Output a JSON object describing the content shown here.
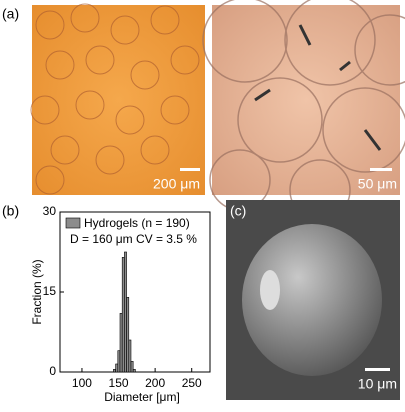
{
  "panels": {
    "a": "(a)",
    "b": "(b)",
    "c": "(c)"
  },
  "scale_bars": [
    "200 μm",
    "50 μm",
    "10 μm"
  ],
  "chart_data": {
    "type": "histogram",
    "annotation": "D = 160 μm CV = 3.5 %",
    "x_label": "Diameter [μm]",
    "y_label": "Fraction (%)",
    "bins": [
      143,
      146,
      149,
      152,
      155,
      158,
      161,
      164,
      167,
      170,
      173
    ],
    "series": [
      {
        "name": "Hydrogels (n = 190)",
        "color": "#8c8c8c",
        "values": [
          0.5,
          1.5,
          4,
          11,
          21.5,
          22.5,
          14,
          6,
          2,
          0.5
        ]
      }
    ],
    "xlim": [
      70,
      275
    ],
    "xticks": [
      100,
      150,
      200,
      250
    ],
    "ylim": [
      0,
      30
    ],
    "yticks": [
      0,
      15,
      30
    ]
  }
}
